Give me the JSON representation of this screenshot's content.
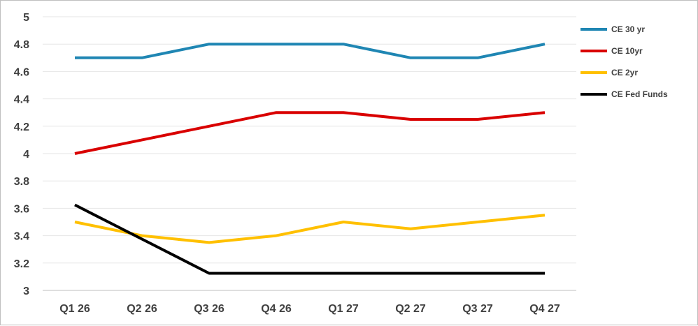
{
  "chart_data": {
    "type": "line",
    "title": "",
    "xlabel": "",
    "ylabel": "",
    "categories": [
      "Q1 26",
      "Q2 26",
      "Q3 26",
      "Q4 26",
      "Q1 27",
      "Q2 27",
      "Q3 27",
      "Q4 27"
    ],
    "ylim": [
      3,
      5
    ],
    "yticks": [
      "3",
      "3.2",
      "3.4",
      "3.6",
      "3.8",
      "4",
      "4.2",
      "4.4",
      "4.6",
      "4.8",
      "5"
    ],
    "grid": true,
    "legend_position": "right",
    "series": [
      {
        "name": "CE 30 yr",
        "color": "#1f86b3",
        "values": [
          4.7,
          4.7,
          4.8,
          4.8,
          4.8,
          4.7,
          4.7,
          4.8
        ]
      },
      {
        "name": "CE 10yr",
        "color": "#d90000",
        "values": [
          4.0,
          4.1,
          4.2,
          4.3,
          4.3,
          4.25,
          4.25,
          4.3
        ]
      },
      {
        "name": "CE 2yr",
        "color": "#ffc000",
        "values": [
          3.5,
          3.4,
          3.35,
          3.4,
          3.5,
          3.45,
          3.5,
          3.55
        ]
      },
      {
        "name": "CE Fed Funds",
        "color": "#000000",
        "values": [
          3.625,
          3.375,
          3.125,
          3.125,
          3.125,
          3.125,
          3.125,
          3.125
        ]
      }
    ]
  }
}
